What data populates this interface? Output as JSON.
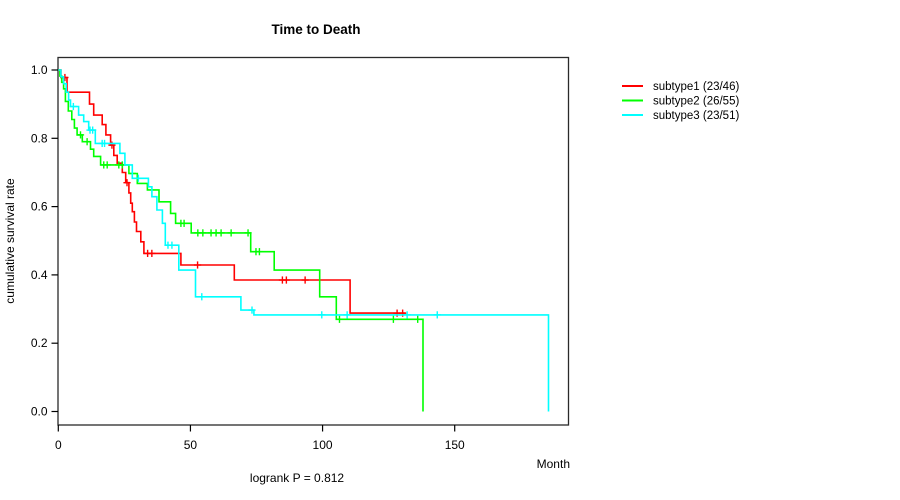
{
  "title": "Time to Death",
  "footer": {
    "text": "logrank P = 0.812"
  },
  "x_axis": {
    "label": "Month",
    "ticks": [
      0,
      50,
      100,
      150
    ]
  },
  "y_axis": {
    "label": "cumulative survival rate",
    "ticks": [
      0.0,
      0.2,
      0.4,
      0.6,
      0.8,
      1.0
    ]
  },
  "legend": {
    "items": [
      {
        "label": "subtype1 (23/46)",
        "color": "#ff0000"
      },
      {
        "label": "subtype2 (26/55)",
        "color": "#00ff00"
      },
      {
        "label": "subtype3 (23/51)",
        "color": "#00ffff"
      }
    ]
  },
  "chart_data": {
    "type": "line",
    "subtype": "kaplan-meier-step",
    "title": "Time to Death",
    "xlabel": "Month",
    "ylabel": "cumulative survival rate",
    "xlim": [
      0,
      193
    ],
    "ylim": [
      -0.04,
      1.04
    ],
    "x_ticks": [
      0,
      50,
      100,
      150
    ],
    "y_ticks": [
      0.0,
      0.2,
      0.4,
      0.6,
      0.8,
      1.0
    ],
    "grid": false,
    "legend_position": "right-outside",
    "series": [
      {
        "name": "subtype1 (23/46)",
        "color": "#ff0000",
        "points": [
          [
            0,
            1.0
          ],
          [
            1,
            0.978
          ],
          [
            3.3,
            0.935
          ],
          [
            11.8,
            0.9
          ],
          [
            13.4,
            0.868
          ],
          [
            16.6,
            0.84
          ],
          [
            18,
            0.81
          ],
          [
            19.8,
            0.78
          ],
          [
            21,
            0.75
          ],
          [
            22.3,
            0.727
          ],
          [
            24.2,
            0.7
          ],
          [
            25.5,
            0.67
          ],
          [
            26.7,
            0.64
          ],
          [
            27.4,
            0.61
          ],
          [
            28,
            0.585
          ],
          [
            28.8,
            0.555
          ],
          [
            29.6,
            0.527
          ],
          [
            31.2,
            0.497
          ],
          [
            32.4,
            0.463
          ],
          [
            46.4,
            0.429
          ],
          [
            66.6,
            0.385
          ],
          [
            110.4,
            0.288
          ],
          [
            131.4,
            0.288
          ]
        ],
        "censors": [
          [
            2.5,
            0.978
          ],
          [
            20.3,
            0.78
          ],
          [
            26,
            0.67
          ],
          [
            33.8,
            0.463
          ],
          [
            35.4,
            0.463
          ],
          [
            52.7,
            0.429
          ],
          [
            84.8,
            0.385
          ],
          [
            86.3,
            0.385
          ],
          [
            93.4,
            0.385
          ],
          [
            128.2,
            0.288
          ],
          [
            130.3,
            0.288
          ]
        ]
      },
      {
        "name": "subtype2 (26/55)",
        "color": "#00ff00",
        "points": [
          [
            0,
            1.0
          ],
          [
            0.6,
            0.982
          ],
          [
            1.3,
            0.964
          ],
          [
            2,
            0.945
          ],
          [
            2.7,
            0.908
          ],
          [
            3.8,
            0.88
          ],
          [
            5.1,
            0.855
          ],
          [
            6.1,
            0.83
          ],
          [
            7.1,
            0.81
          ],
          [
            9.1,
            0.79
          ],
          [
            12.2,
            0.768
          ],
          [
            13.4,
            0.747
          ],
          [
            16,
            0.722
          ],
          [
            26.7,
            0.697
          ],
          [
            29.9,
            0.668
          ],
          [
            33.7,
            0.649
          ],
          [
            38.1,
            0.614
          ],
          [
            42.5,
            0.58
          ],
          [
            44.4,
            0.551
          ],
          [
            50.3,
            0.523
          ],
          [
            72.8,
            0.468
          ],
          [
            81.7,
            0.414
          ],
          [
            98.9,
            0.336
          ],
          [
            105.2,
            0.27
          ],
          [
            138,
            0.0
          ]
        ],
        "censors": [
          [
            8.4,
            0.81
          ],
          [
            10.9,
            0.79
          ],
          [
            17.2,
            0.722
          ],
          [
            18.5,
            0.722
          ],
          [
            22.9,
            0.722
          ],
          [
            24.2,
            0.722
          ],
          [
            28,
            0.697
          ],
          [
            46.4,
            0.551
          ],
          [
            47.6,
            0.551
          ],
          [
            52.8,
            0.523
          ],
          [
            54.7,
            0.523
          ],
          [
            57.8,
            0.523
          ],
          [
            59.7,
            0.523
          ],
          [
            61.6,
            0.523
          ],
          [
            65.4,
            0.523
          ],
          [
            71.8,
            0.523
          ],
          [
            74.8,
            0.468
          ],
          [
            76.1,
            0.468
          ],
          [
            106.4,
            0.27
          ],
          [
            126.8,
            0.27
          ],
          [
            136,
            0.27
          ]
        ]
      },
      {
        "name": "subtype3 (23/51)",
        "color": "#00ffff",
        "points": [
          [
            0,
            1.0
          ],
          [
            1,
            0.98
          ],
          [
            2,
            0.96
          ],
          [
            3,
            0.935
          ],
          [
            3.9,
            0.912
          ],
          [
            4.6,
            0.893
          ],
          [
            7.7,
            0.868
          ],
          [
            9.6,
            0.849
          ],
          [
            11.5,
            0.824
          ],
          [
            14,
            0.785
          ],
          [
            23.3,
            0.756
          ],
          [
            25.2,
            0.722
          ],
          [
            28,
            0.683
          ],
          [
            34.1,
            0.658
          ],
          [
            35.4,
            0.629
          ],
          [
            37.3,
            0.59
          ],
          [
            39.4,
            0.551
          ],
          [
            40.5,
            0.487
          ],
          [
            45.6,
            0.414
          ],
          [
            51.9,
            0.336
          ],
          [
            69.1,
            0.297
          ],
          [
            74,
            0.283
          ],
          [
            185.5,
            0.0
          ]
        ],
        "censors": [
          [
            5.7,
            0.893
          ],
          [
            12,
            0.824
          ],
          [
            13,
            0.824
          ],
          [
            16.6,
            0.785
          ],
          [
            17.5,
            0.785
          ],
          [
            30.3,
            0.683
          ],
          [
            41.5,
            0.487
          ],
          [
            43,
            0.487
          ],
          [
            54.3,
            0.336
          ],
          [
            73.3,
            0.297
          ],
          [
            99.7,
            0.283
          ],
          [
            109.3,
            0.283
          ],
          [
            132,
            0.283
          ],
          [
            143.4,
            0.283
          ]
        ]
      }
    ]
  },
  "layout_colors": {
    "axis": "#000000",
    "box": "#2a2a2a",
    "text": "#000000"
  }
}
